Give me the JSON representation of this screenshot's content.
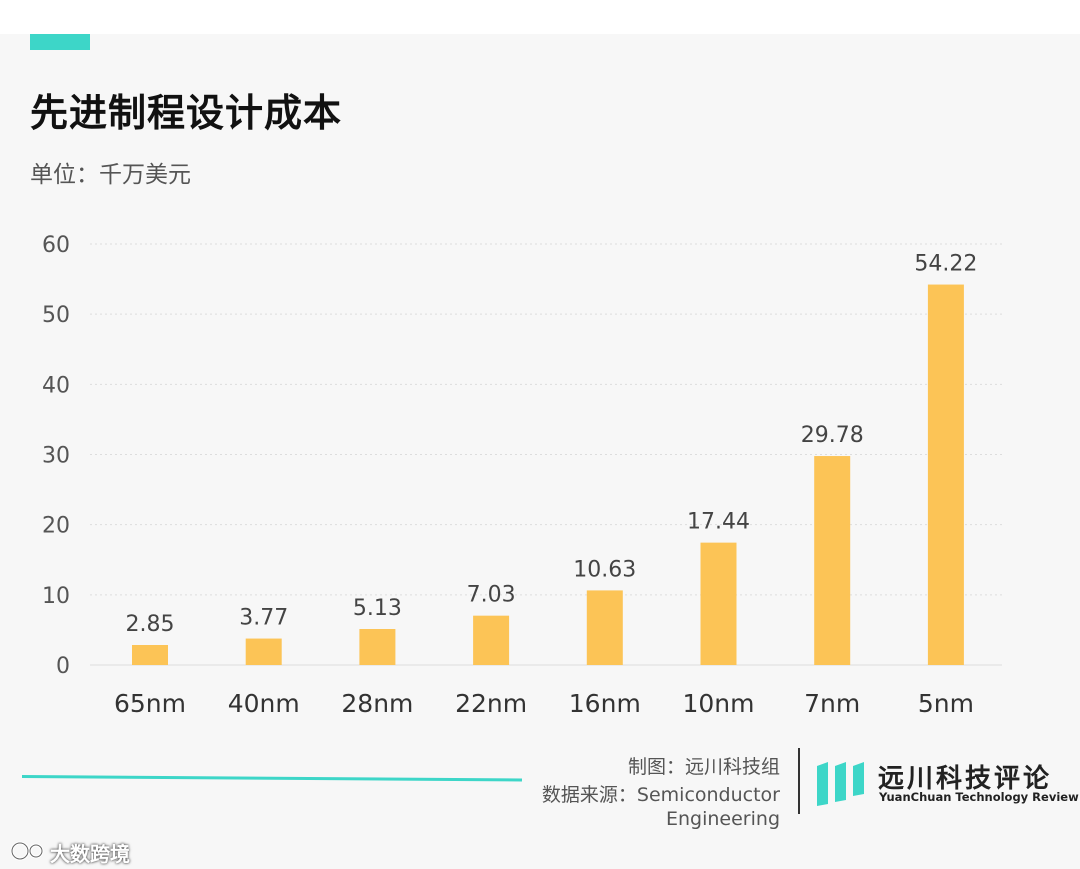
{
  "title": "先进制程设计成本",
  "unit_label": "单位：千万美元",
  "chart_data": {
    "type": "bar",
    "title": "先进制程设计成本",
    "categories": [
      "65nm",
      "40nm",
      "28nm",
      "22nm",
      "16nm",
      "10nm",
      "7nm",
      "5nm"
    ],
    "values": [
      2.85,
      3.77,
      5.13,
      7.03,
      10.63,
      17.44,
      29.78,
      54.22
    ],
    "value_labels": [
      "2.85",
      "3.77",
      "5.13",
      "7.03",
      "10.63",
      "17.44",
      "29.78",
      "54.22"
    ],
    "ylim": [
      0,
      60
    ],
    "yticks": [
      "0",
      "10",
      "20",
      "30",
      "40",
      "50",
      "60"
    ],
    "grid": true,
    "bar_color": "#fcc456"
  },
  "footer": {
    "maker": "制图：远川科技组",
    "source_line1": "数据来源：Semiconductor",
    "source_line2": "Engineering"
  },
  "logo": {
    "cn": "远川科技评论",
    "en": "YuanChuan Technology Review",
    "color": "#3dd6c8"
  },
  "platform": {
    "name": "大数跨境"
  }
}
